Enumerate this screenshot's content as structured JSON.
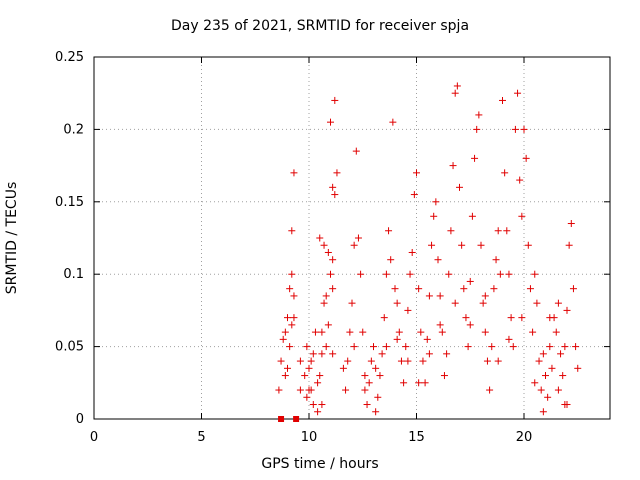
{
  "chart_data": {
    "type": "scatter",
    "title": "Day 235 of 2021, SRMTID for receiver spja",
    "xlabel": "GPS time / hours",
    "ylabel": "SRMTID / TECUs",
    "xlim": [
      0,
      24
    ],
    "ylim": [
      0,
      0.25
    ],
    "xticks": [
      "0",
      "5",
      "10",
      "15",
      "20"
    ],
    "yticks": [
      "0",
      "0.05",
      "0.1",
      "0.15",
      "0.2",
      "0.25"
    ],
    "grid": true,
    "marker": "plus",
    "color": "#e00000",
    "square_markers": [
      [
        8.7,
        0.0
      ],
      [
        9.4,
        0.0
      ]
    ],
    "series": [
      {
        "values": [
          [
            8.6,
            0.02
          ],
          [
            8.7,
            0.04
          ],
          [
            8.8,
            0.055
          ],
          [
            8.9,
            0.06
          ],
          [
            9.0,
            0.07
          ],
          [
            9.1,
            0.09
          ],
          [
            9.2,
            0.1
          ],
          [
            9.2,
            0.13
          ],
          [
            9.3,
            0.17
          ],
          [
            9.3,
            0.085
          ],
          [
            9.1,
            0.05
          ],
          [
            9.0,
            0.035
          ],
          [
            8.9,
            0.03
          ],
          [
            9.2,
            0.065
          ],
          [
            9.3,
            0.07
          ],
          [
            9.6,
            0.02
          ],
          [
            9.8,
            0.03
          ],
          [
            9.9,
            0.05
          ],
          [
            10.0,
            0.02
          ],
          [
            10.1,
            0.04
          ],
          [
            10.2,
            0.01
          ],
          [
            10.3,
            0.06
          ],
          [
            10.4,
            0.025
          ],
          [
            10.5,
            0.03
          ],
          [
            10.6,
            0.045
          ],
          [
            10.7,
            0.08
          ],
          [
            10.8,
            0.085
          ],
          [
            10.9,
            0.065
          ],
          [
            11.0,
            0.1
          ],
          [
            11.1,
            0.11
          ],
          [
            10.5,
            0.125
          ],
          [
            10.7,
            0.12
          ],
          [
            10.9,
            0.115
          ],
          [
            11.1,
            0.09
          ],
          [
            11.0,
            0.205
          ],
          [
            11.2,
            0.22
          ],
          [
            11.3,
            0.17
          ],
          [
            11.2,
            0.155
          ],
          [
            11.1,
            0.16
          ],
          [
            10.8,
            0.05
          ],
          [
            10.6,
            0.01
          ],
          [
            10.4,
            0.005
          ],
          [
            10.2,
            0.045
          ],
          [
            10.0,
            0.035
          ],
          [
            9.9,
            0.015
          ],
          [
            11.7,
            0.02
          ],
          [
            11.8,
            0.04
          ],
          [
            11.9,
            0.06
          ],
          [
            12.0,
            0.08
          ],
          [
            12.1,
            0.12
          ],
          [
            12.2,
            0.185
          ],
          [
            12.3,
            0.125
          ],
          [
            12.4,
            0.1
          ],
          [
            12.5,
            0.06
          ],
          [
            12.6,
            0.03
          ],
          [
            12.7,
            0.01
          ],
          [
            12.8,
            0.025
          ],
          [
            12.9,
            0.04
          ],
          [
            13.0,
            0.05
          ],
          [
            13.1,
            0.005
          ],
          [
            13.2,
            0.015
          ],
          [
            13.3,
            0.03
          ],
          [
            13.4,
            0.045
          ],
          [
            13.5,
            0.07
          ],
          [
            13.6,
            0.1
          ],
          [
            13.7,
            0.13
          ],
          [
            13.8,
            0.11
          ],
          [
            13.9,
            0.205
          ],
          [
            14.0,
            0.09
          ],
          [
            14.1,
            0.08
          ],
          [
            14.2,
            0.06
          ],
          [
            14.3,
            0.04
          ],
          [
            14.4,
            0.025
          ],
          [
            14.5,
            0.05
          ],
          [
            14.6,
            0.075
          ],
          [
            14.7,
            0.1
          ],
          [
            14.8,
            0.115
          ],
          [
            14.9,
            0.155
          ],
          [
            15.0,
            0.17
          ],
          [
            15.1,
            0.09
          ],
          [
            15.2,
            0.06
          ],
          [
            15.3,
            0.04
          ],
          [
            15.4,
            0.025
          ],
          [
            15.5,
            0.055
          ],
          [
            15.6,
            0.085
          ],
          [
            15.7,
            0.12
          ],
          [
            15.8,
            0.14
          ],
          [
            15.9,
            0.15
          ],
          [
            16.0,
            0.11
          ],
          [
            16.1,
            0.085
          ],
          [
            16.2,
            0.06
          ],
          [
            16.3,
            0.03
          ],
          [
            16.4,
            0.045
          ],
          [
            16.5,
            0.1
          ],
          [
            16.6,
            0.13
          ],
          [
            16.7,
            0.175
          ],
          [
            16.8,
            0.225
          ],
          [
            16.9,
            0.23
          ],
          [
            17.0,
            0.16
          ],
          [
            17.1,
            0.12
          ],
          [
            17.2,
            0.09
          ],
          [
            17.3,
            0.07
          ],
          [
            17.4,
            0.05
          ],
          [
            17.5,
            0.095
          ],
          [
            17.6,
            0.14
          ],
          [
            17.7,
            0.18
          ],
          [
            17.8,
            0.2
          ],
          [
            17.9,
            0.21
          ],
          [
            18.0,
            0.12
          ],
          [
            18.1,
            0.08
          ],
          [
            18.2,
            0.06
          ],
          [
            18.3,
            0.04
          ],
          [
            18.4,
            0.02
          ],
          [
            18.5,
            0.05
          ],
          [
            18.6,
            0.09
          ],
          [
            18.7,
            0.11
          ],
          [
            18.8,
            0.13
          ],
          [
            18.9,
            0.1
          ],
          [
            19.0,
            0.22
          ],
          [
            19.1,
            0.17
          ],
          [
            19.2,
            0.13
          ],
          [
            19.3,
            0.1
          ],
          [
            19.4,
            0.07
          ],
          [
            19.5,
            0.05
          ],
          [
            19.6,
            0.2
          ],
          [
            19.7,
            0.225
          ],
          [
            19.8,
            0.165
          ],
          [
            19.9,
            0.14
          ],
          [
            20.0,
            0.2
          ],
          [
            20.1,
            0.18
          ],
          [
            20.2,
            0.12
          ],
          [
            20.3,
            0.09
          ],
          [
            20.4,
            0.06
          ],
          [
            20.5,
            0.1
          ],
          [
            20.6,
            0.08
          ],
          [
            20.7,
            0.04
          ],
          [
            20.8,
            0.02
          ],
          [
            20.9,
            0.005
          ],
          [
            21.0,
            0.03
          ],
          [
            21.1,
            0.015
          ],
          [
            21.2,
            0.05
          ],
          [
            21.3,
            0.035
          ],
          [
            21.4,
            0.07
          ],
          [
            21.5,
            0.06
          ],
          [
            21.6,
            0.02
          ],
          [
            21.7,
            0.045
          ],
          [
            21.8,
            0.03
          ],
          [
            21.9,
            0.01
          ],
          [
            22.0,
            0.075
          ],
          [
            22.1,
            0.12
          ],
          [
            22.2,
            0.135
          ],
          [
            22.3,
            0.09
          ],
          [
            22.4,
            0.05
          ],
          [
            22.5,
            0.035
          ],
          [
            22.0,
            0.01
          ],
          [
            21.9,
            0.05
          ],
          [
            21.6,
            0.08
          ],
          [
            21.2,
            0.07
          ],
          [
            20.9,
            0.045
          ],
          [
            20.5,
            0.025
          ],
          [
            19.9,
            0.07
          ],
          [
            19.3,
            0.055
          ],
          [
            18.8,
            0.04
          ],
          [
            18.2,
            0.085
          ],
          [
            17.5,
            0.065
          ],
          [
            16.8,
            0.08
          ],
          [
            16.1,
            0.065
          ],
          [
            15.6,
            0.045
          ],
          [
            15.1,
            0.025
          ],
          [
            14.6,
            0.04
          ],
          [
            14.1,
            0.055
          ],
          [
            13.6,
            0.05
          ],
          [
            13.1,
            0.035
          ],
          [
            12.6,
            0.02
          ],
          [
            12.1,
            0.05
          ],
          [
            11.6,
            0.035
          ],
          [
            11.1,
            0.045
          ],
          [
            10.6,
            0.06
          ],
          [
            10.1,
            0.02
          ],
          [
            9.6,
            0.04
          ]
        ]
      }
    ]
  }
}
